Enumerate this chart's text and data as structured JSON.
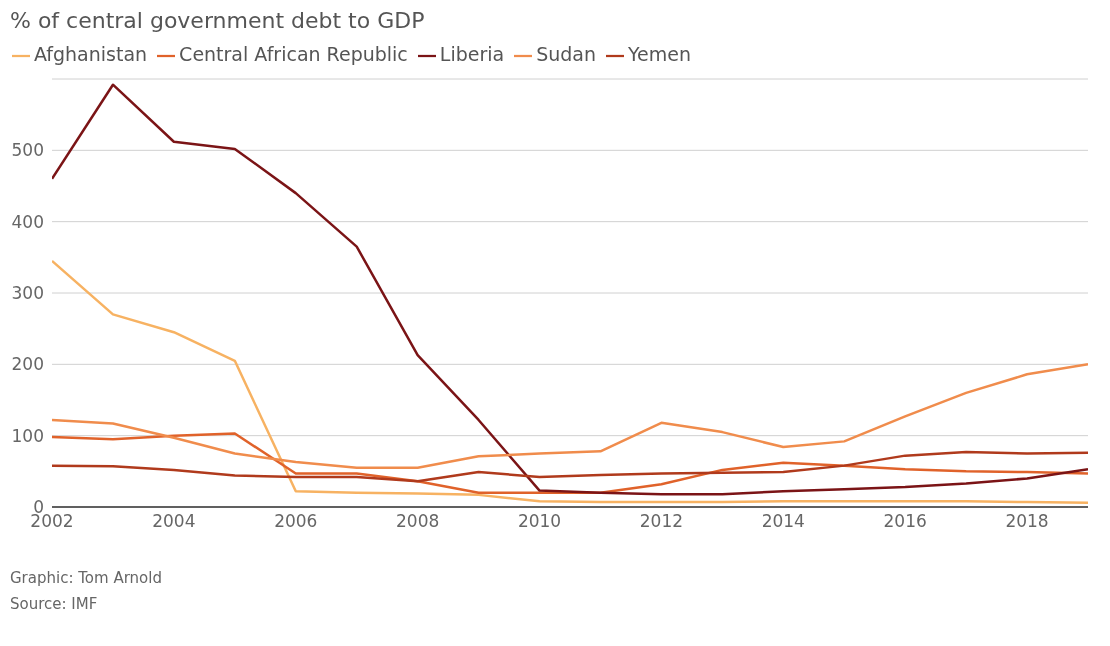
{
  "chart_data": {
    "type": "line",
    "title": "% of central government debt to GDP",
    "x": [
      2002,
      2003,
      2004,
      2005,
      2006,
      2007,
      2008,
      2009,
      2010,
      2011,
      2012,
      2013,
      2014,
      2015,
      2016,
      2017,
      2018,
      2019
    ],
    "series": [
      {
        "name": "Afghanistan",
        "color": "#f7b262",
        "values": [
          345,
          270,
          245,
          205,
          22,
          20,
          19,
          17,
          8,
          7,
          7,
          7,
          8,
          8,
          8,
          8,
          7,
          6
        ]
      },
      {
        "name": "Central African Republic",
        "color": "#e0622a",
        "values": [
          98,
          95,
          100,
          103,
          47,
          47,
          36,
          20,
          20,
          20,
          32,
          52,
          62,
          58,
          53,
          50,
          49,
          47
        ]
      },
      {
        "name": "Liberia",
        "color": "#7b1416",
        "values": [
          460,
          592,
          512,
          502,
          440,
          365,
          213,
          122,
          23,
          20,
          18,
          18,
          22,
          25,
          28,
          33,
          40,
          53
        ]
      },
      {
        "name": "Sudan",
        "color": "#f08c4c",
        "values": [
          122,
          117,
          97,
          75,
          63,
          55,
          55,
          71,
          75,
          78,
          118,
          105,
          84,
          92,
          127,
          160,
          186,
          200
        ]
      },
      {
        "name": "Yemen",
        "color": "#b03a1c",
        "values": [
          58,
          57,
          52,
          44,
          42,
          42,
          36,
          49,
          42,
          45,
          47,
          48,
          49,
          58,
          72,
          77,
          75,
          76
        ]
      }
    ],
    "xlim": [
      2002,
      2019
    ],
    "xticks": [
      2002,
      2004,
      2006,
      2008,
      2010,
      2012,
      2014,
      2016,
      2018
    ],
    "ylim": [
      0,
      600
    ],
    "yticks": [
      0,
      100,
      200,
      300,
      400,
      500
    ],
    "grid": "y",
    "legend": "top left",
    "marker": "none",
    "line_style": "solid",
    "annotations": [
      "Graphic: Tom Arnold",
      "Source: IMF"
    ]
  }
}
